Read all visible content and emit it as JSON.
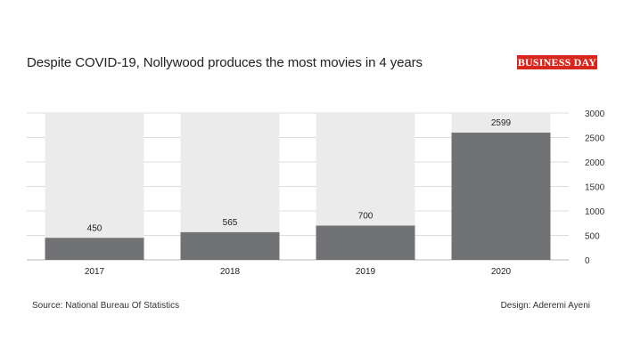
{
  "header": {
    "title": "Despite COVID-19, Nollywood produces the most movies in 4 years",
    "logo_text": "BUSINESS DAY"
  },
  "footer": {
    "source": "Source: National Bureau Of Statistics",
    "design": "Design: Aderemi Ayeni"
  },
  "colors": {
    "bar": "#707273",
    "bar_background": "#ebebeb",
    "logo": "#d9261c"
  },
  "chart_data": {
    "type": "bar",
    "categories": [
      "2017",
      "2018",
      "2019",
      "2020"
    ],
    "values": [
      450,
      565,
      700,
      2599
    ],
    "value_labels": [
      "450",
      "565",
      "700",
      "2599"
    ],
    "ylim": [
      0,
      3000
    ],
    "yticks": [
      0,
      500,
      1000,
      1500,
      2000,
      2500,
      3000
    ],
    "ytick_labels": [
      "0",
      "500",
      "1000",
      "1500",
      "2000",
      "2500",
      "3000"
    ],
    "y_axis_side": "right",
    "grid": true,
    "legend": "none"
  }
}
